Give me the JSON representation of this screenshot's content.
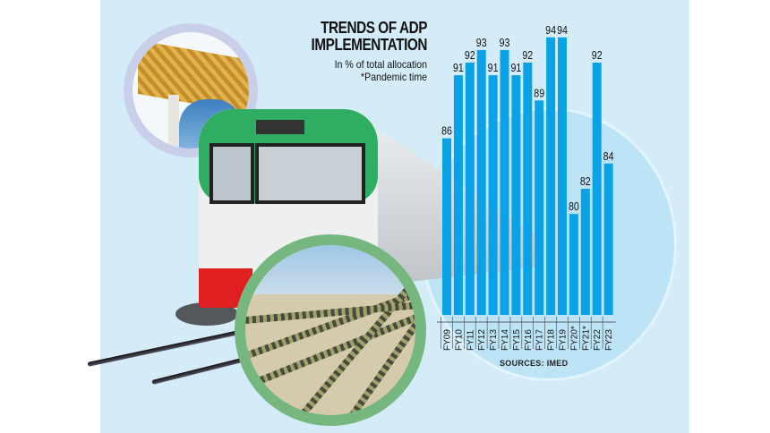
{
  "chart_data": {
    "type": "bar",
    "title": "TRENDS OF ADP IMPLEMENTATION",
    "subtitle": "In % of total allocation",
    "note": "*Pandemic time",
    "source": "SOURCES: IMED",
    "xlabel": "",
    "ylabel": "",
    "ylim": [
      72,
      95
    ],
    "grid": false,
    "bar_color": "#0aa2e6",
    "categories": [
      "FY09",
      "FY10",
      "FY11",
      "FY12",
      "FY13",
      "FY14",
      "FY15",
      "FY16",
      "FY17",
      "FY18",
      "FY19",
      "FY20*",
      "FY21*",
      "FY22",
      "FY23"
    ],
    "values": [
      86,
      91,
      92,
      93,
      91,
      93,
      91,
      92,
      89,
      94,
      94,
      80,
      82,
      92,
      84
    ],
    "data_labels": [
      "86",
      "91",
      "92",
      "93",
      "91",
      "93",
      "91",
      "92",
      "89",
      "94",
      "94",
      "80",
      "82",
      "92",
      "84"
    ]
  },
  "title_lines": [
    "TRENDS OF ADP",
    "IMPLEMENTATION"
  ],
  "subtitle_lines": [
    "In % of total allocation",
    "*Pandemic time"
  ],
  "colors": {
    "panel": "#d3ecf8",
    "bar": "#0aa2e6",
    "train_green": "#2fae63",
    "train_red": "#e02020"
  }
}
